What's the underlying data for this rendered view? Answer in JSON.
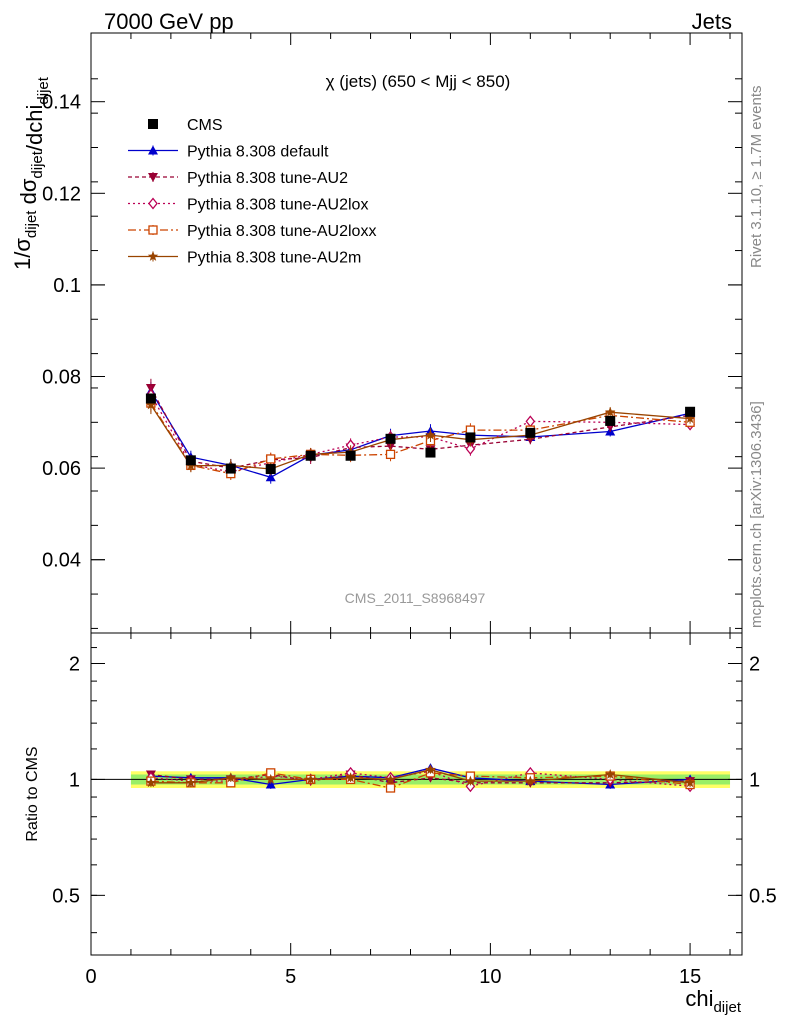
{
  "header": {
    "energy_label": "7000 GeV pp",
    "process_label": "Jets",
    "side_rivet": "Rivet 3.1.10, ≥ 1.7M events",
    "side_mcplots": "mcplots.cern.ch [arXiv:1306.3436]"
  },
  "chart_data": [
    {
      "type": "line",
      "title": "χ (jets) (650 < Mjj <  850)",
      "watermark": "CMS_2011_S8968497",
      "ylabel": "1/σdijet dσdijet/dchidijet",
      "xlabel": "chidijet",
      "xlim": [
        0,
        16.3
      ],
      "ylim": [
        0.024,
        0.155
      ],
      "x_ticks": [
        0,
        5,
        10,
        15
      ],
      "y_ticks": [
        0.04,
        0.06,
        0.08,
        0.1,
        0.12,
        0.14
      ],
      "y_tick_labels": [
        "0.04",
        "0.06",
        "0.08",
        "0.1",
        "0.12",
        "0.14"
      ],
      "legend_position": "top-left",
      "x_bins": [
        [
          1,
          2
        ],
        [
          2,
          3
        ],
        [
          3,
          4
        ],
        [
          4,
          5
        ],
        [
          5,
          6
        ],
        [
          6,
          7
        ],
        [
          7,
          8
        ],
        [
          8,
          9
        ],
        [
          9,
          10
        ],
        [
          10,
          12
        ],
        [
          12,
          14
        ],
        [
          14,
          16
        ]
      ],
      "x": [
        1.5,
        2.5,
        3.5,
        4.5,
        5.5,
        6.5,
        7.5,
        8.5,
        9.5,
        11,
        13,
        15
      ],
      "series": [
        {
          "name": "CMS",
          "color": "#000000",
          "marker": "square",
          "dash": "none",
          "values": [
            0.0752,
            0.0617,
            0.0599,
            0.0598,
            0.0627,
            0.0627,
            0.0664,
            0.0634,
            0.0667,
            0.0677,
            0.0703,
            0.0723
          ],
          "errors": [
            0.0008,
            0.0006,
            0.0006,
            0.0006,
            0.0006,
            0.0006,
            0.0006,
            0.0006,
            0.0006,
            0.0005,
            0.0005,
            0.0005
          ]
        },
        {
          "name": "Pythia 8.308 default",
          "color": "#0000cc",
          "marker": "triangle-up",
          "dash": "none",
          "values": [
            0.0768,
            0.0624,
            0.0606,
            0.058,
            0.0628,
            0.064,
            0.0671,
            0.0681,
            0.0672,
            0.0668,
            0.068,
            0.072
          ],
          "errors": [
            0.002,
            0.0014,
            0.0014,
            0.0014,
            0.0014,
            0.0015,
            0.0015,
            0.0015,
            0.0015,
            0.0011,
            0.0011,
            0.0011
          ]
        },
        {
          "name": "Pythia 8.308 tune-AU2",
          "color": "#990033",
          "marker": "triangle-down",
          "dash": "4,3",
          "values": [
            0.0775,
            0.0615,
            0.06,
            0.0618,
            0.0623,
            0.0645,
            0.0648,
            0.0641,
            0.065,
            0.0663,
            0.069,
            0.0715
          ],
          "errors": [
            0.002,
            0.0014,
            0.0014,
            0.0014,
            0.0014,
            0.0015,
            0.0015,
            0.0015,
            0.0015,
            0.0011,
            0.0011,
            0.0011
          ]
        },
        {
          "name": "Pythia 8.308 tune-AU2lox",
          "color": "#bb0055",
          "marker": "diamond",
          "dash": "2,3",
          "values": [
            0.076,
            0.0608,
            0.0592,
            0.0612,
            0.063,
            0.065,
            0.0668,
            0.0668,
            0.0642,
            0.0702,
            0.07,
            0.0695
          ],
          "errors": [
            0.002,
            0.0014,
            0.0014,
            0.0014,
            0.0014,
            0.0015,
            0.0015,
            0.0015,
            0.0015,
            0.0011,
            0.0011,
            0.0011
          ]
        },
        {
          "name": "Pythia 8.308 tune-AU2loxx",
          "color": "#cc4400",
          "marker": "open-square",
          "dash": "8,3,2,3",
          "values": [
            0.0742,
            0.0606,
            0.0588,
            0.062,
            0.063,
            0.0628,
            0.063,
            0.066,
            0.0683,
            0.0683,
            0.0715,
            0.07
          ],
          "errors": [
            0.002,
            0.0014,
            0.0014,
            0.0014,
            0.0014,
            0.0015,
            0.0015,
            0.0015,
            0.0015,
            0.0011,
            0.0011,
            0.0011
          ]
        },
        {
          "name": "Pythia 8.308 tune-AU2m",
          "color": "#994400",
          "marker": "star",
          "dash": "none",
          "values": [
            0.0738,
            0.0605,
            0.0606,
            0.0598,
            0.063,
            0.0635,
            0.0662,
            0.0672,
            0.0662,
            0.0672,
            0.0722,
            0.0708
          ],
          "errors": [
            0.002,
            0.0014,
            0.0014,
            0.0014,
            0.0014,
            0.0015,
            0.0015,
            0.0015,
            0.0015,
            0.0011,
            0.0011,
            0.0011
          ]
        }
      ]
    },
    {
      "type": "line",
      "ylabel": "Ratio to CMS",
      "xlabel": "chidijet",
      "scale": "log",
      "xlim": [
        0,
        16.3
      ],
      "ylim": [
        0.35,
        2.4
      ],
      "y_ticks": [
        0.5,
        1,
        2
      ],
      "y_tick_labels": [
        "0.5",
        "1",
        "2"
      ],
      "band_inner": 0.03,
      "band_outer": 0.05,
      "series": [
        {
          "name": "Pythia 8.308 default",
          "values": [
            1.02,
            1.01,
            1.01,
            0.97,
            1.0,
            1.02,
            1.01,
            1.07,
            1.01,
            0.99,
            0.97,
            1.0
          ]
        },
        {
          "name": "Pythia 8.308 tune-AU2",
          "values": [
            1.03,
            1.0,
            1.0,
            1.03,
            0.99,
            1.03,
            0.98,
            1.01,
            0.98,
            0.98,
            0.98,
            0.99
          ]
        },
        {
          "name": "Pythia 8.308 tune-AU2lox",
          "values": [
            1.01,
            0.99,
            0.99,
            1.02,
            1.0,
            1.04,
            1.01,
            1.05,
            0.96,
            1.04,
            1.0,
            0.96
          ]
        },
        {
          "name": "Pythia 8.308 tune-AU2loxx",
          "values": [
            0.99,
            0.98,
            0.98,
            1.04,
            1.0,
            1.0,
            0.95,
            1.04,
            1.02,
            1.01,
            1.02,
            0.97
          ]
        },
        {
          "name": "Pythia 8.308 tune-AU2m",
          "values": [
            0.98,
            0.98,
            1.01,
            1.0,
            1.0,
            1.01,
            1.0,
            1.06,
            0.99,
            0.99,
            1.03,
            0.98
          ]
        }
      ]
    }
  ]
}
